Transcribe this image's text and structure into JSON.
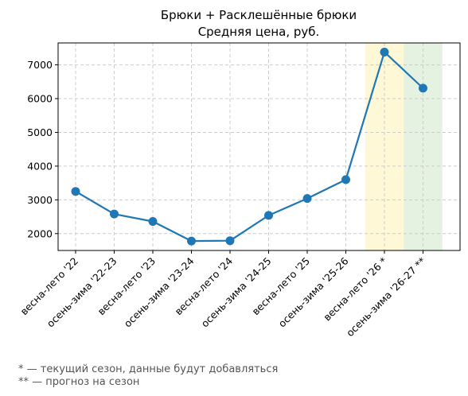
{
  "chart_data": {
    "type": "line",
    "title": "Брюки + Расклешённые брюки",
    "subtitle": "Средняя цена, руб.",
    "xlabel": "",
    "ylabel": "",
    "categories": [
      "весна-лето '22",
      "осень-зима '22-23",
      "весна-лето '23",
      "осень-зима '23-24",
      "весна-лето '24",
      "осень-зима '24-25",
      "весна-лето '25",
      "осень-зима '25-26",
      "весна-лето '26 *",
      "осень-зима '26-27 **"
    ],
    "series": [
      {
        "values": [
          3250,
          2580,
          2360,
          1780,
          1790,
          2540,
          3040,
          3600,
          7380,
          6310
        ],
        "color": "#1f77b4"
      }
    ],
    "ylim": [
      1500,
      7650
    ],
    "yticks": [
      2000,
      3000,
      4000,
      5000,
      6000,
      7000
    ],
    "grid": true,
    "highlights": [
      {
        "category": "весна-лето '26 *",
        "color": "#fff8d6"
      },
      {
        "category": "осень-зима '26-27 **",
        "color": "#e6f2e1"
      }
    ]
  },
  "notes": {
    "current": "* — текущий сезон, данные будут добавляться",
    "forecast": "** — прогноз на сезон"
  }
}
